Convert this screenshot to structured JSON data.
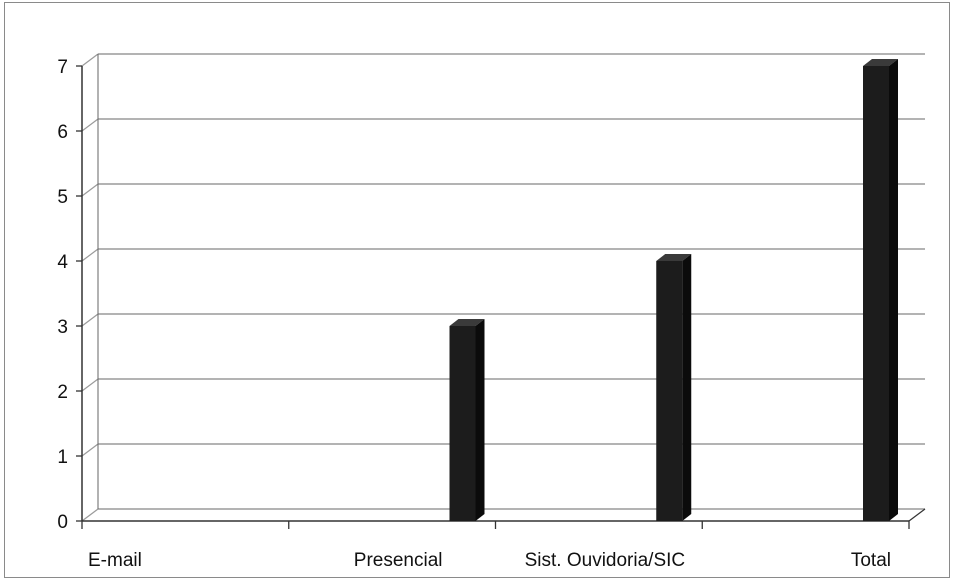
{
  "chart_data": {
    "type": "bar",
    "categories": [
      "E-mail",
      "Presencial",
      "Sist. Ouvidoria/SIC",
      "Total"
    ],
    "values": [
      0,
      3,
      4,
      7
    ],
    "ylim": [
      0,
      7
    ],
    "yticks": [
      0,
      1,
      2,
      3,
      4,
      5,
      6,
      7
    ],
    "grid": true,
    "legend": "none",
    "bar_color": "#1c1c1c",
    "grid_color": "#9a9a9a",
    "style": "3d-column"
  }
}
